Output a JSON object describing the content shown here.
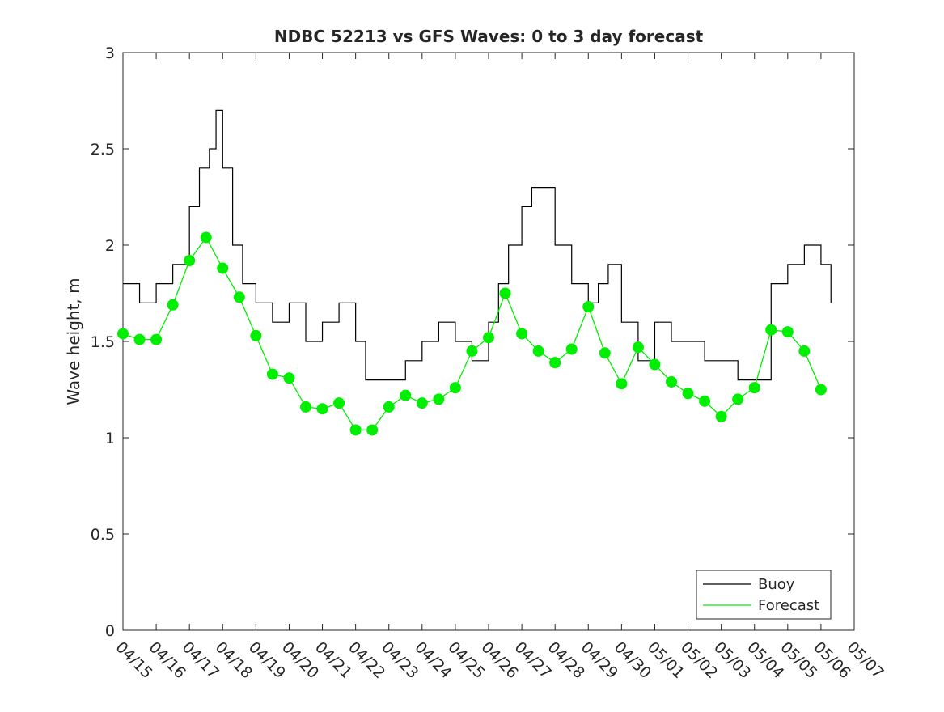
{
  "chart_data": {
    "type": "line",
    "title": "NDBC 52213 vs GFS Waves: 0 to 3 day forecast",
    "xlabel": "",
    "ylabel": "Wave height, m",
    "ylim": [
      0,
      3
    ],
    "yticks": [
      0,
      0.5,
      1,
      1.5,
      2,
      2.5,
      3
    ],
    "ytick_labels": [
      "0",
      "0.5",
      "1",
      "1.5",
      "2",
      "2.5",
      "3"
    ],
    "xlim": [
      0,
      22
    ],
    "xtick_labels": [
      "04/15",
      "04/16",
      "04/17",
      "04/18",
      "04/19",
      "04/20",
      "04/21",
      "04/22",
      "04/23",
      "04/24",
      "04/25",
      "04/26",
      "04/27",
      "04/28",
      "04/29",
      "04/30",
      "05/01",
      "05/02",
      "05/03",
      "05/04",
      "05/05",
      "05/06",
      "05/07"
    ],
    "grid": false,
    "legend_position": "bottom-right",
    "colors": {
      "buoy": "#000000",
      "forecast": "#00ee00"
    },
    "legend": [
      {
        "label": "Buoy",
        "color": "#000000"
      },
      {
        "label": "Forecast",
        "color": "#00ee00"
      }
    ],
    "series": [
      {
        "name": "Buoy",
        "x": [
          0,
          0.5,
          1,
          1.5,
          2,
          2.3,
          2.6,
          2.8,
          3.0,
          3.3,
          3.6,
          4.0,
          4.5,
          5.0,
          5.5,
          6.0,
          6.5,
          7.0,
          7.3,
          7.6,
          8.0,
          8.5,
          9.0,
          9.5,
          10.0,
          10.5,
          11.0,
          11.3,
          11.6,
          12.0,
          12.3,
          12.6,
          13.0,
          13.5,
          14.0,
          14.3,
          14.6,
          15.0,
          15.5,
          16.0,
          16.5,
          17.0,
          17.5,
          18.0,
          18.5,
          19.0,
          19.5,
          20.0,
          20.5,
          21.0,
          21.3
        ],
        "y": [
          1.8,
          1.7,
          1.8,
          1.9,
          2.2,
          2.4,
          2.5,
          2.7,
          2.4,
          2.0,
          1.8,
          1.7,
          1.6,
          1.7,
          1.5,
          1.6,
          1.7,
          1.5,
          1.3,
          1.3,
          1.3,
          1.4,
          1.5,
          1.6,
          1.5,
          1.4,
          1.6,
          1.8,
          2.0,
          2.2,
          2.3,
          2.3,
          2.0,
          1.8,
          1.7,
          1.8,
          1.9,
          1.6,
          1.4,
          1.6,
          1.5,
          1.5,
          1.4,
          1.4,
          1.3,
          1.3,
          1.8,
          1.9,
          2.0,
          1.9,
          1.7
        ]
      },
      {
        "name": "Forecast",
        "x": [
          0,
          0.5,
          1,
          1.5,
          2,
          2.5,
          3,
          3.5,
          4,
          4.5,
          5,
          5.5,
          6,
          6.5,
          7,
          7.5,
          8,
          8.5,
          9,
          9.5,
          10,
          10.5,
          11,
          11.5,
          12,
          12.5,
          13,
          13.5,
          14,
          14.5,
          15,
          15.5,
          16,
          16.5,
          17,
          17.5,
          18,
          18.5,
          19,
          19.5,
          20,
          20.5,
          21
        ],
        "y": [
          1.54,
          1.51,
          1.51,
          1.69,
          1.92,
          2.04,
          1.88,
          1.73,
          1.53,
          1.33,
          1.31,
          1.16,
          1.15,
          1.18,
          1.04,
          1.04,
          1.16,
          1.22,
          1.18,
          1.2,
          1.26,
          1.45,
          1.52,
          1.75,
          1.54,
          1.45,
          1.39,
          1.46,
          1.68,
          1.44,
          1.28,
          1.47,
          1.38,
          1.29,
          1.23,
          1.19,
          1.11,
          1.2,
          1.26,
          1.56,
          1.55,
          1.45,
          1.25
        ]
      }
    ]
  }
}
